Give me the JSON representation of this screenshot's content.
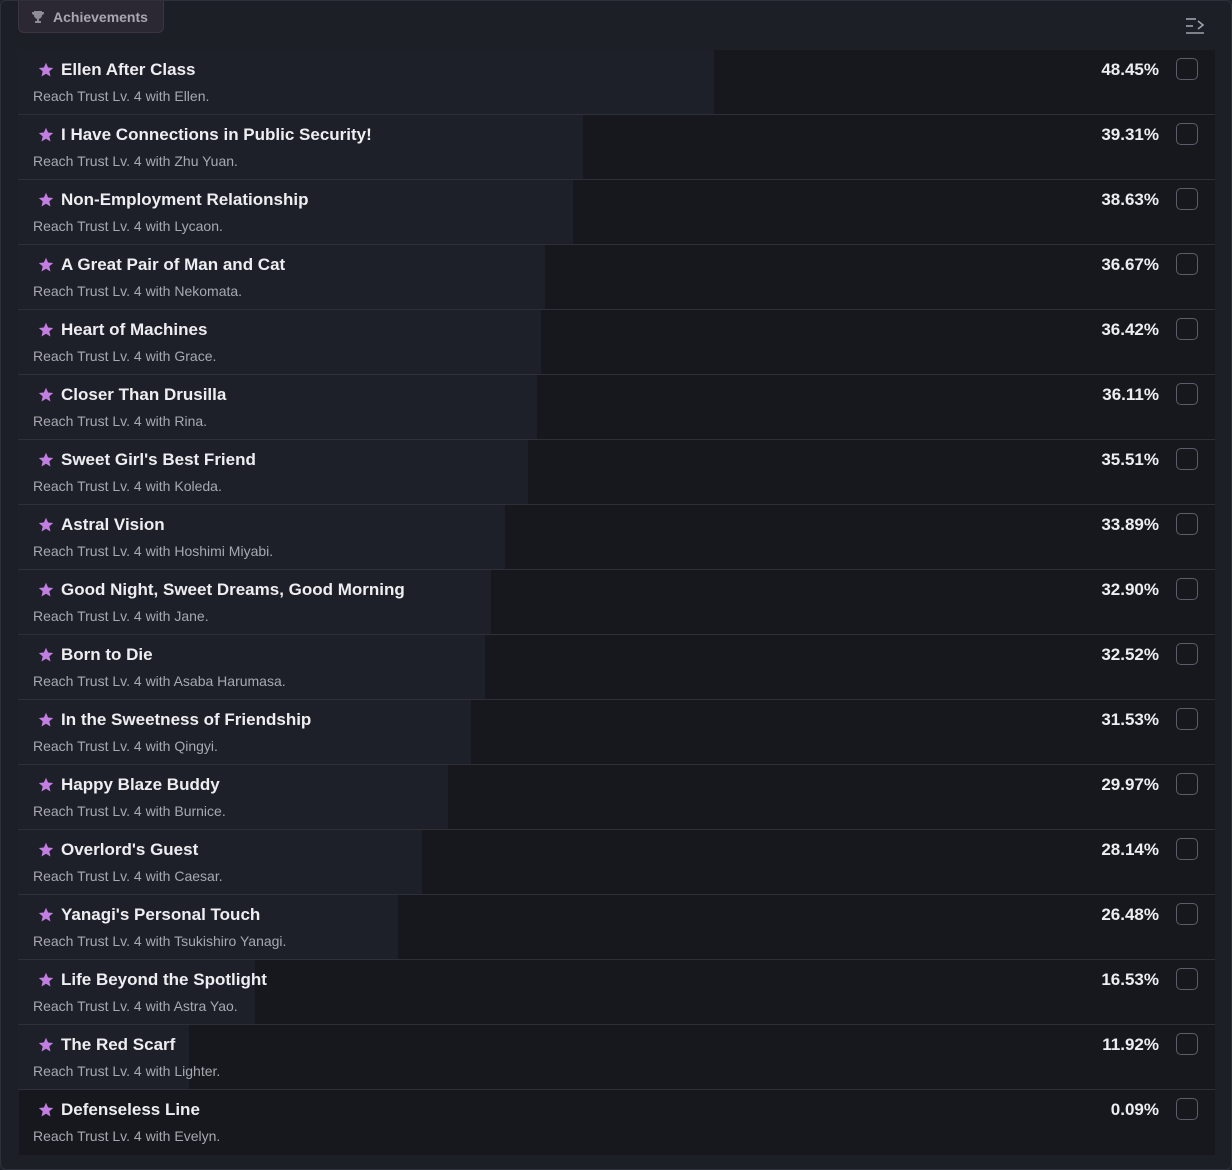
{
  "header": {
    "tab_label": "Achievements",
    "tab_icon": "trophy-icon",
    "collapse_icon": "collapse-panel-icon"
  },
  "colors": {
    "star": "#c27ee0",
    "row_bg": "#17181d",
    "row_fill": "#1e2029"
  },
  "achievements": [
    {
      "title": "Ellen After Class",
      "description": "Reach Trust Lv. 4 with Ellen.",
      "percent_label": "48.45%",
      "percent": 48.45,
      "checked": false
    },
    {
      "title": "I Have Connections in Public Security!",
      "description": "Reach Trust Lv. 4 with Zhu Yuan.",
      "percent_label": "39.31%",
      "percent": 39.31,
      "checked": false
    },
    {
      "title": "Non-Employment Relationship",
      "description": "Reach Trust Lv. 4 with Lycaon.",
      "percent_label": "38.63%",
      "percent": 38.63,
      "checked": false
    },
    {
      "title": "A Great Pair of Man and Cat",
      "description": "Reach Trust Lv. 4 with Nekomata.",
      "percent_label": "36.67%",
      "percent": 36.67,
      "checked": false
    },
    {
      "title": "Heart of Machines",
      "description": "Reach Trust Lv. 4 with Grace.",
      "percent_label": "36.42%",
      "percent": 36.42,
      "checked": false
    },
    {
      "title": "Closer Than Drusilla",
      "description": "Reach Trust Lv. 4 with Rina.",
      "percent_label": "36.11%",
      "percent": 36.11,
      "checked": false
    },
    {
      "title": "Sweet Girl's Best Friend",
      "description": "Reach Trust Lv. 4 with Koleda.",
      "percent_label": "35.51%",
      "percent": 35.51,
      "checked": false
    },
    {
      "title": "Astral Vision",
      "description": "Reach Trust Lv. 4 with Hoshimi Miyabi.",
      "percent_label": "33.89%",
      "percent": 33.89,
      "checked": false
    },
    {
      "title": "Good Night, Sweet Dreams, Good Morning",
      "description": "Reach Trust Lv. 4 with Jane.",
      "percent_label": "32.90%",
      "percent": 32.9,
      "checked": false
    },
    {
      "title": "Born to Die",
      "description": "Reach Trust Lv. 4 with Asaba Harumasa.",
      "percent_label": "32.52%",
      "percent": 32.52,
      "checked": false
    },
    {
      "title": "In the Sweetness of Friendship",
      "description": "Reach Trust Lv. 4 with Qingyi.",
      "percent_label": "31.53%",
      "percent": 31.53,
      "checked": false
    },
    {
      "title": "Happy Blaze Buddy",
      "description": "Reach Trust Lv. 4 with Burnice.",
      "percent_label": "29.97%",
      "percent": 29.97,
      "checked": false
    },
    {
      "title": "Overlord's Guest",
      "description": "Reach Trust Lv. 4 with Caesar.",
      "percent_label": "28.14%",
      "percent": 28.14,
      "checked": false
    },
    {
      "title": "Yanagi's Personal Touch",
      "description": "Reach Trust Lv. 4 with Tsukishiro Yanagi.",
      "percent_label": "26.48%",
      "percent": 26.48,
      "checked": false
    },
    {
      "title": "Life Beyond the Spotlight",
      "description": "Reach Trust Lv. 4 with Astra Yao.",
      "percent_label": "16.53%",
      "percent": 16.53,
      "checked": false
    },
    {
      "title": "The Red Scarf",
      "description": "Reach Trust Lv. 4 with Lighter.",
      "percent_label": "11.92%",
      "percent": 11.92,
      "checked": false
    },
    {
      "title": "Defenseless Line",
      "description": "Reach Trust Lv. 4 with Evelyn.",
      "percent_label": "0.09%",
      "percent": 0.09,
      "checked": false
    }
  ]
}
